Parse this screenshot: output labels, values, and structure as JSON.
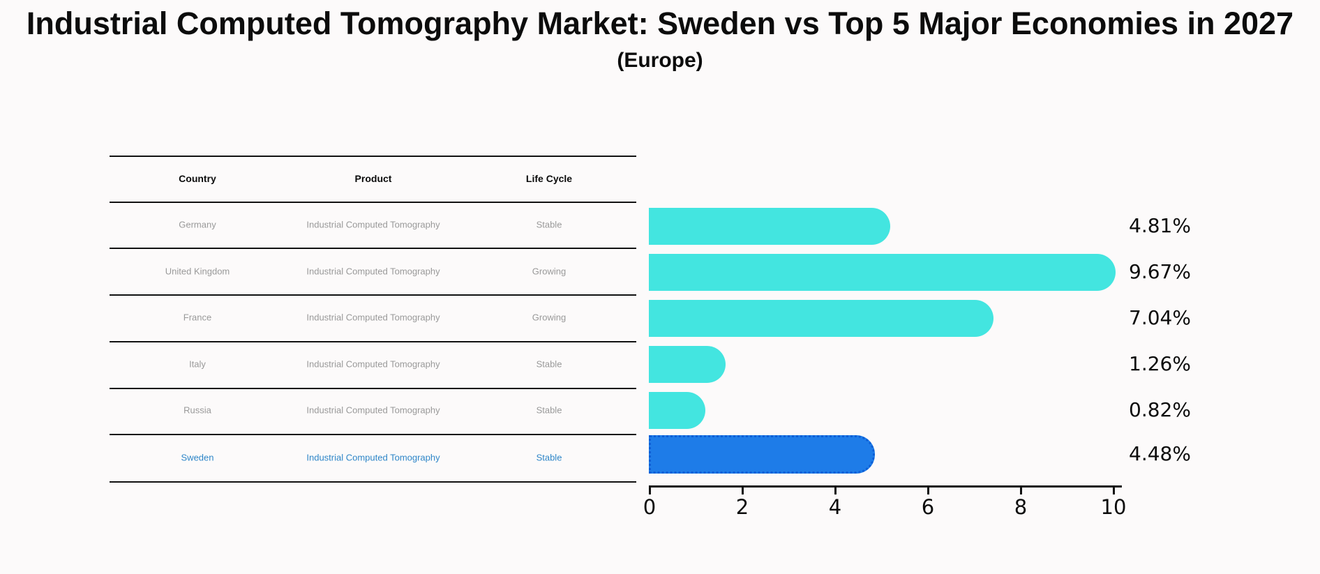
{
  "figure": {
    "title": "Industrial Computed Tomography Market: Sweden vs Top 5 Major Economies in 2027",
    "subtitle": "(Europe)"
  },
  "table": {
    "headers": [
      "Country",
      "Product",
      "Life Cycle"
    ],
    "rows": [
      {
        "country": "Germany",
        "product": "Industrial Computed Tomography",
        "life_cycle": "Stable",
        "highlighted": false
      },
      {
        "country": "United Kingdom",
        "product": "Industrial Computed Tomography",
        "life_cycle": "Growing",
        "highlighted": false
      },
      {
        "country": "France",
        "product": "Industrial Computed Tomography",
        "life_cycle": "Growing",
        "highlighted": false
      },
      {
        "country": "Italy",
        "product": "Industrial Computed Tomography",
        "life_cycle": "Stable",
        "highlighted": false
      },
      {
        "country": "Russia",
        "product": "Industrial Computed Tomography",
        "life_cycle": "Stable",
        "highlighted": false
      },
      {
        "country": "Sweden",
        "product": "Industrial Computed Tomography",
        "life_cycle": "Stable",
        "highlighted": true
      }
    ]
  },
  "chart_data": {
    "type": "bar",
    "orientation": "horizontal",
    "title": "Industrial Computed Tomography Market: Sweden vs Top 5 Major Economies in 2027 (Europe)",
    "categories": [
      "Germany",
      "United Kingdom",
      "France",
      "Italy",
      "Russia",
      "Sweden"
    ],
    "values": [
      4.81,
      9.67,
      7.04,
      1.26,
      0.82,
      4.48
    ],
    "value_labels": [
      "4.81%",
      "9.67%",
      "7.04%",
      "1.26%",
      "0.82%",
      "4.48%"
    ],
    "xlabel": "",
    "ylabel": "",
    "xlim": [
      0,
      10
    ],
    "xticks": [
      0,
      2,
      4,
      6,
      8,
      10
    ],
    "grid": false,
    "legend": false,
    "highlight_index": 5,
    "bar_color": "#43e5e0",
    "highlight_color": "#1e7ce8"
  },
  "colors": {
    "background": "#fcfafa",
    "text": "#0c0c0c",
    "table_text": "#999999",
    "highlight_text": "#2e86c8",
    "line": "#111111"
  }
}
